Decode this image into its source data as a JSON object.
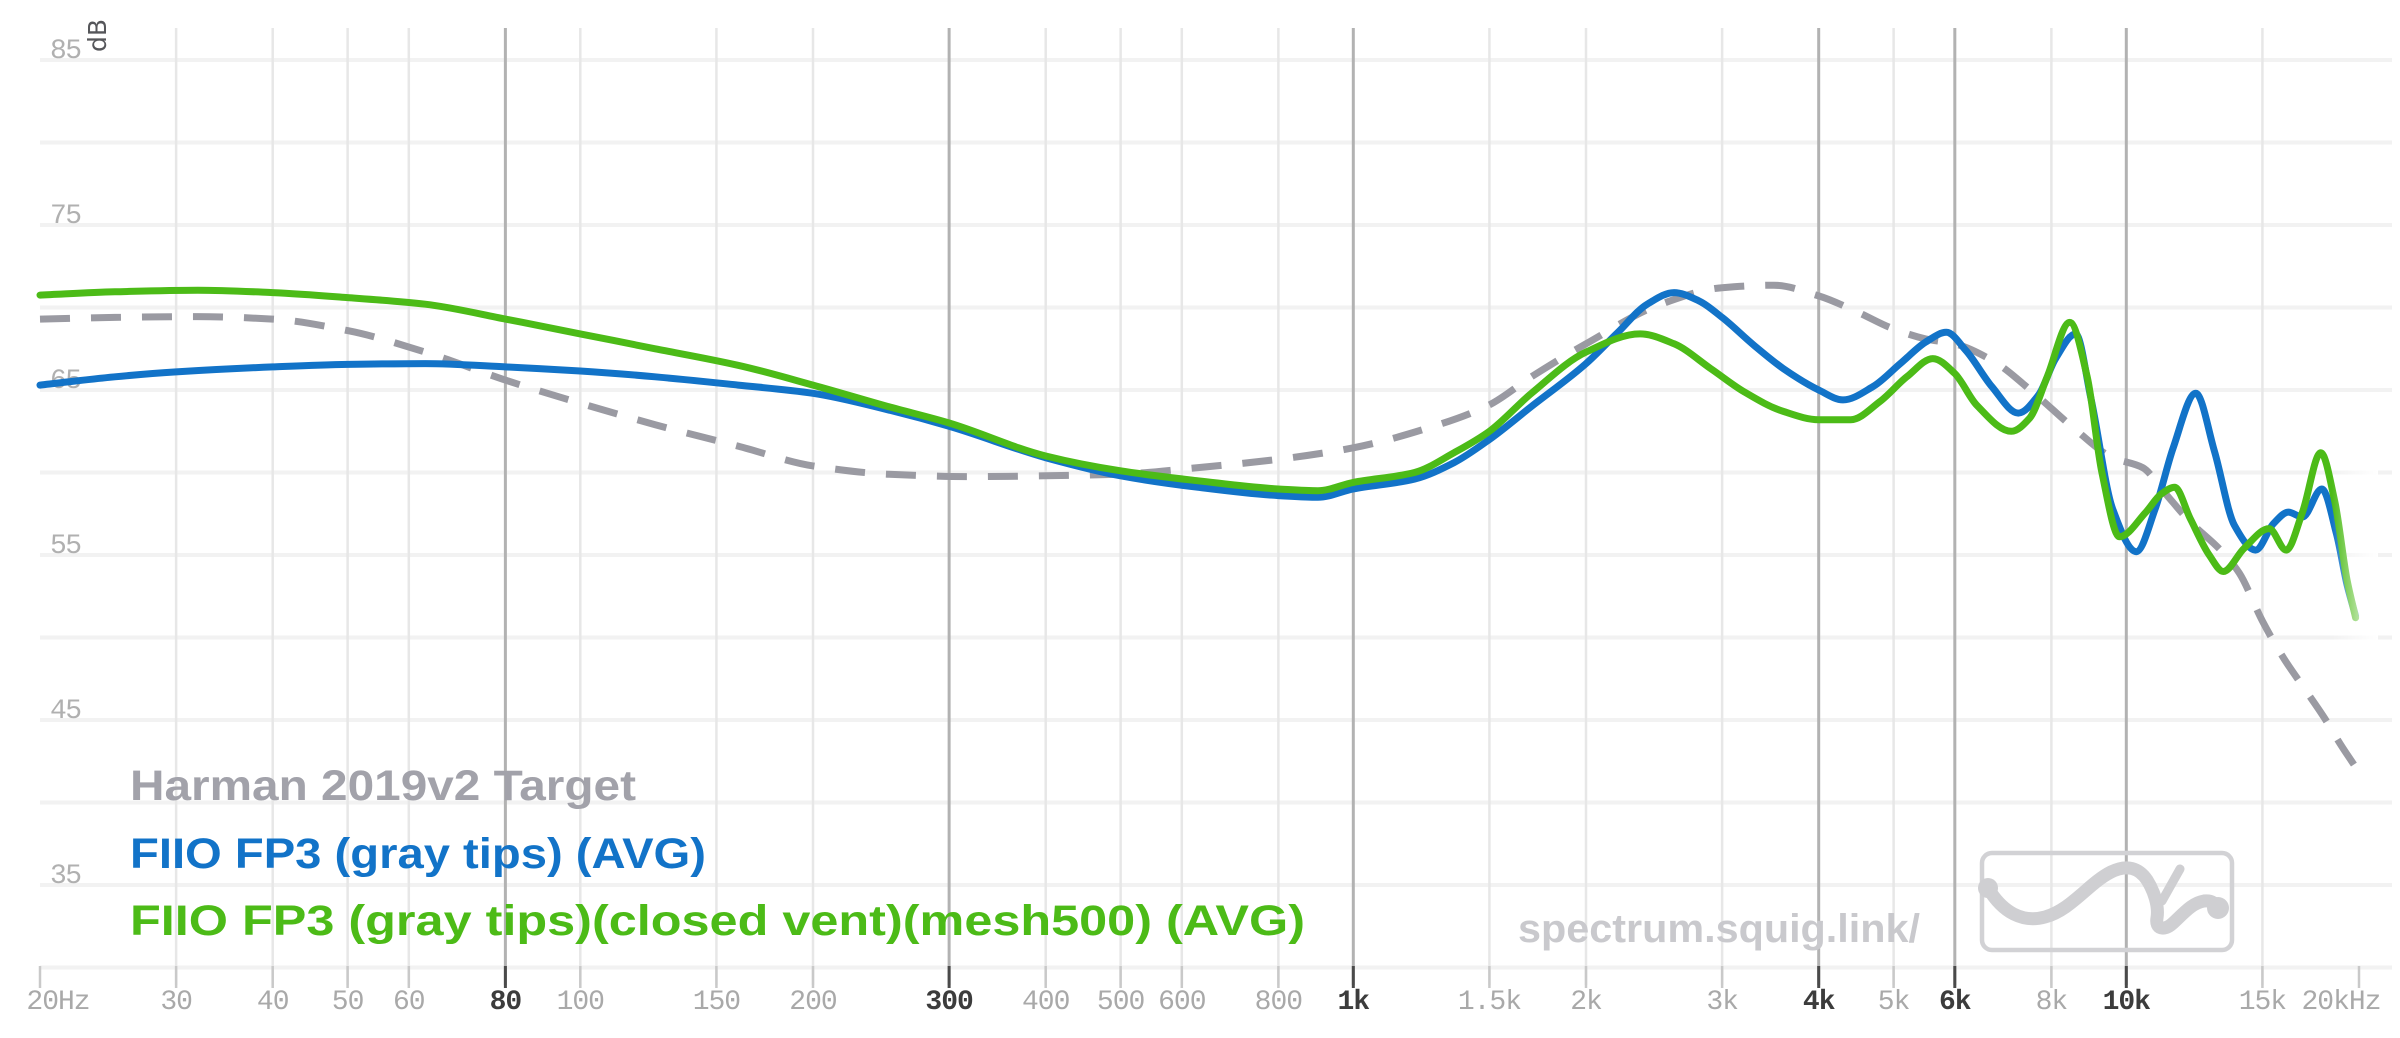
{
  "page": {
    "background": "#ffffff"
  },
  "axis": {
    "db_unit_label": "dB",
    "x_tick_color": "#a9a9a9",
    "x_tick_emphasis_color": "#3c3c3c",
    "y_tick_color": "#b0b0b0",
    "minor_gridline_color": "#e7e7e7",
    "major_gridline_color": "#b2b2b2",
    "horizontal_gridline_color": "#f2f2f2",
    "minor_tickmark_color": "#c9c9c9",
    "major_tickmark_color": "#4a4a4a"
  },
  "watermark": {
    "text": "spectrum.squig.link/",
    "color": "#c9c9cd"
  },
  "logo": {
    "name": "squiglink-logo",
    "color": "#d2d2d5"
  },
  "chart_data": {
    "type": "line",
    "title": "",
    "xlabel": "",
    "ylabel": "dB",
    "x_scale": "log",
    "x_range_hz": [
      20,
      20000
    ],
    "y_gridline_range_db": [
      30,
      85
    ],
    "y_gridline_step_db": 5,
    "grid": true,
    "legend_position": "bottom-left",
    "x_ticks": [
      {
        "hz": 20,
        "label": "20Hz",
        "emphasis": false,
        "dx": 18
      },
      {
        "hz": 30,
        "label": "30",
        "emphasis": false,
        "dx": 0
      },
      {
        "hz": 40,
        "label": "40",
        "emphasis": false,
        "dx": 0
      },
      {
        "hz": 50,
        "label": "50",
        "emphasis": false,
        "dx": 0
      },
      {
        "hz": 60,
        "label": "60",
        "emphasis": false,
        "dx": 0
      },
      {
        "hz": 80,
        "label": "80",
        "emphasis": true,
        "dx": 0
      },
      {
        "hz": 100,
        "label": "100",
        "emphasis": false,
        "dx": 0
      },
      {
        "hz": 150,
        "label": "150",
        "emphasis": false,
        "dx": 0
      },
      {
        "hz": 200,
        "label": "200",
        "emphasis": false,
        "dx": 0
      },
      {
        "hz": 300,
        "label": "300",
        "emphasis": true,
        "dx": 0
      },
      {
        "hz": 400,
        "label": "400",
        "emphasis": false,
        "dx": 0
      },
      {
        "hz": 500,
        "label": "500",
        "emphasis": false,
        "dx": 0
      },
      {
        "hz": 600,
        "label": "600",
        "emphasis": false,
        "dx": 0
      },
      {
        "hz": 800,
        "label": "800",
        "emphasis": false,
        "dx": 0
      },
      {
        "hz": 1000,
        "label": "1k",
        "emphasis": true,
        "dx": 0
      },
      {
        "hz": 1500,
        "label": "1.5k",
        "emphasis": false,
        "dx": 0
      },
      {
        "hz": 2000,
        "label": "2k",
        "emphasis": false,
        "dx": 0
      },
      {
        "hz": 3000,
        "label": "3k",
        "emphasis": false,
        "dx": 0
      },
      {
        "hz": 4000,
        "label": "4k",
        "emphasis": true,
        "dx": 0
      },
      {
        "hz": 5000,
        "label": "5k",
        "emphasis": false,
        "dx": 0
      },
      {
        "hz": 6000,
        "label": "6k",
        "emphasis": true,
        "dx": 0
      },
      {
        "hz": 8000,
        "label": "8k",
        "emphasis": false,
        "dx": 0
      },
      {
        "hz": 10000,
        "label": "10k",
        "emphasis": true,
        "dx": 0
      },
      {
        "hz": 15000,
        "label": "15k",
        "emphasis": false,
        "dx": 0
      },
      {
        "hz": 20000,
        "label": "20kHz",
        "emphasis": false,
        "dx": -18
      }
    ],
    "y_ticks": [
      {
        "db": 85,
        "label": "85"
      },
      {
        "db": 75,
        "label": "75"
      },
      {
        "db": 65,
        "label": "65"
      },
      {
        "db": 55,
        "label": "55"
      },
      {
        "db": 45,
        "label": "45"
      },
      {
        "db": 35,
        "label": "35"
      }
    ],
    "series": [
      {
        "name": "Harman 2019v2 Target",
        "color": "#9a9aa2",
        "legend_color": "#a2a2aa",
        "style": "dashed",
        "points": [
          [
            20,
            69.3
          ],
          [
            25,
            69.4
          ],
          [
            32,
            69.45
          ],
          [
            40,
            69.3
          ],
          [
            50,
            68.6
          ],
          [
            63,
            67.3
          ],
          [
            80,
            65.6
          ],
          [
            100,
            64.2
          ],
          [
            125,
            62.9
          ],
          [
            160,
            61.6
          ],
          [
            200,
            60.4
          ],
          [
            250,
            59.9
          ],
          [
            320,
            59.75
          ],
          [
            400,
            59.8
          ],
          [
            500,
            59.9
          ],
          [
            630,
            60.3
          ],
          [
            800,
            60.8
          ],
          [
            1000,
            61.5
          ],
          [
            1250,
            62.7
          ],
          [
            1500,
            64.1
          ],
          [
            1700,
            65.8
          ],
          [
            2000,
            67.8
          ],
          [
            2500,
            70.2
          ],
          [
            3000,
            71.2
          ],
          [
            3500,
            71.35
          ],
          [
            4000,
            70.7
          ],
          [
            4500,
            69.7
          ],
          [
            5000,
            68.7
          ],
          [
            5500,
            68.1
          ],
          [
            6000,
            67.8
          ],
          [
            6700,
            66.8
          ],
          [
            7600,
            64.8
          ],
          [
            8500,
            62.8
          ],
          [
            9600,
            60.9
          ],
          [
            10500,
            60.3
          ],
          [
            11200,
            58.8
          ],
          [
            12100,
            57.0
          ],
          [
            13300,
            55.2
          ],
          [
            14000,
            53.9
          ],
          [
            15000,
            51.0
          ],
          [
            16000,
            48.7
          ],
          [
            17000,
            46.9
          ],
          [
            18000,
            45.2
          ],
          [
            19000,
            43.4
          ],
          [
            19700,
            42.3
          ]
        ]
      },
      {
        "name": "FIIO FP3 (gray tips) (AVG)",
        "color": "#1273c8",
        "legend_color": "#1273c8",
        "style": "solid",
        "points": [
          [
            20,
            65.3
          ],
          [
            25,
            65.8
          ],
          [
            30,
            66.1
          ],
          [
            40,
            66.4
          ],
          [
            50,
            66.55
          ],
          [
            63,
            66.6
          ],
          [
            80,
            66.4
          ],
          [
            100,
            66.15
          ],
          [
            125,
            65.8
          ],
          [
            160,
            65.3
          ],
          [
            200,
            64.8
          ],
          [
            250,
            63.8
          ],
          [
            300,
            62.8
          ],
          [
            400,
            60.9
          ],
          [
            500,
            59.8
          ],
          [
            630,
            59.1
          ],
          [
            800,
            58.6
          ],
          [
            900,
            58.5
          ],
          [
            1000,
            59.0
          ],
          [
            1200,
            59.6
          ],
          [
            1350,
            60.6
          ],
          [
            1500,
            62.0
          ],
          [
            1700,
            64.0
          ],
          [
            2000,
            66.6
          ],
          [
            2200,
            68.5
          ],
          [
            2400,
            70.2
          ],
          [
            2600,
            70.9
          ],
          [
            2800,
            70.4
          ],
          [
            3000,
            69.4
          ],
          [
            3300,
            67.7
          ],
          [
            3600,
            66.3
          ],
          [
            4000,
            65.0
          ],
          [
            4300,
            64.4
          ],
          [
            4700,
            65.2
          ],
          [
            5100,
            66.6
          ],
          [
            5500,
            67.9
          ],
          [
            5850,
            68.5
          ],
          [
            6200,
            67.4
          ],
          [
            6700,
            65.2
          ],
          [
            7250,
            63.6
          ],
          [
            7700,
            64.7
          ],
          [
            8100,
            66.9
          ],
          [
            8600,
            68.4
          ],
          [
            9000,
            64.5
          ],
          [
            9600,
            57.8
          ],
          [
            10300,
            55.2
          ],
          [
            10900,
            57.8
          ],
          [
            11500,
            61.5
          ],
          [
            12300,
            64.8
          ],
          [
            13000,
            61.3
          ],
          [
            13800,
            56.8
          ],
          [
            14700,
            55.3
          ],
          [
            15500,
            56.9
          ],
          [
            16200,
            57.6
          ],
          [
            16900,
            57.3
          ],
          [
            17900,
            59.0
          ],
          [
            18700,
            56.3
          ],
          [
            19300,
            53.2
          ],
          [
            19800,
            51.3
          ]
        ]
      },
      {
        "name": "FIIO FP3 (gray tips)(closed vent)(mesh500) (AVG)",
        "color": "#4cbb17",
        "legend_color": "#4cbb17",
        "style": "solid",
        "points": [
          [
            20,
            70.75
          ],
          [
            25,
            70.95
          ],
          [
            32,
            71.05
          ],
          [
            40,
            70.9
          ],
          [
            50,
            70.6
          ],
          [
            63,
            70.2
          ],
          [
            80,
            69.3
          ],
          [
            100,
            68.4
          ],
          [
            125,
            67.5
          ],
          [
            160,
            66.5
          ],
          [
            200,
            65.3
          ],
          [
            250,
            64.0
          ],
          [
            300,
            63.0
          ],
          [
            400,
            61.0
          ],
          [
            500,
            60.1
          ],
          [
            630,
            59.5
          ],
          [
            800,
            59.0
          ],
          [
            900,
            58.9
          ],
          [
            1000,
            59.4
          ],
          [
            1200,
            60.0
          ],
          [
            1350,
            61.2
          ],
          [
            1500,
            62.5
          ],
          [
            1700,
            64.8
          ],
          [
            2000,
            67.3
          ],
          [
            2350,
            68.4
          ],
          [
            2600,
            67.8
          ],
          [
            2900,
            66.3
          ],
          [
            3200,
            64.9
          ],
          [
            3600,
            63.7
          ],
          [
            4000,
            63.2
          ],
          [
            4400,
            63.2
          ],
          [
            4800,
            64.3
          ],
          [
            5200,
            65.8
          ],
          [
            5620,
            66.9
          ],
          [
            6000,
            66.0
          ],
          [
            6400,
            64.1
          ],
          [
            7100,
            62.5
          ],
          [
            7500,
            63.3
          ],
          [
            7900,
            65.8
          ],
          [
            8450,
            69.1
          ],
          [
            8900,
            65.8
          ],
          [
            9300,
            60.0
          ],
          [
            9800,
            56.1
          ],
          [
            10600,
            57.6
          ],
          [
            11100,
            58.7
          ],
          [
            11550,
            59.1
          ],
          [
            12100,
            57.2
          ],
          [
            12800,
            55.0
          ],
          [
            13350,
            54.0
          ],
          [
            14200,
            55.4
          ],
          [
            15300,
            56.6
          ],
          [
            16100,
            55.3
          ],
          [
            16900,
            57.6
          ],
          [
            17850,
            61.2
          ],
          [
            18600,
            58.3
          ],
          [
            19300,
            53.5
          ],
          [
            19800,
            51.2
          ]
        ]
      }
    ]
  }
}
